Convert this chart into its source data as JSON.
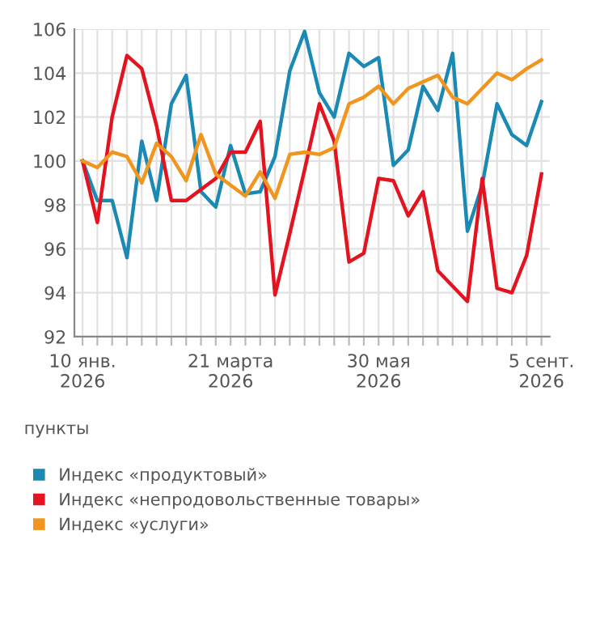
{
  "chart_data": {
    "type": "line",
    "categories": [
      "10 янв.\n2026",
      null,
      null,
      null,
      null,
      null,
      null,
      null,
      null,
      null,
      "21 марта\n2026",
      null,
      null,
      null,
      null,
      null,
      null,
      null,
      null,
      null,
      "30 мая\n2026",
      null,
      null,
      null,
      null,
      null,
      null,
      null,
      null,
      null,
      null,
      "5 сент.\n2026"
    ],
    "series": [
      {
        "name": "Индекс «продуктовый»",
        "color": "#1a8ab5",
        "values": [
          100,
          98.2,
          98.2,
          95.6,
          100.9,
          98.2,
          102.6,
          103.9,
          98.6,
          97.9,
          100.7,
          98.5,
          98.6,
          100.2,
          104.1,
          105.9,
          103.1,
          102.0,
          104.9,
          104.3,
          104.7,
          99.8,
          100.5,
          103.4,
          102.3,
          104.9,
          96.8,
          98.9,
          102.6,
          101.2,
          100.7,
          102.7
        ]
      },
      {
        "name": "Индекс «непродовольственные товары»",
        "color": "#e3141f",
        "values": [
          100,
          97.2,
          102.0,
          104.8,
          104.2,
          101.6,
          98.2,
          98.2,
          98.7,
          99.2,
          100.4,
          100.4,
          101.8,
          93.9,
          96.7,
          99.6,
          102.6,
          100.9,
          95.4,
          95.8,
          99.2,
          99.1,
          97.5,
          98.6,
          95.0,
          94.3,
          93.6,
          99.2,
          94.2,
          94.0,
          95.7,
          99.4
        ]
      },
      {
        "name": "Индекс «услуги»",
        "color": "#f0961e",
        "values": [
          100,
          99.7,
          100.4,
          100.2,
          99.0,
          100.8,
          100.2,
          99.1,
          101.2,
          99.4,
          98.9,
          98.4,
          99.5,
          98.3,
          100.3,
          100.4,
          100.3,
          100.6,
          102.6,
          102.9,
          103.4,
          102.6,
          103.3,
          103.6,
          103.9,
          102.9,
          102.6,
          103.3,
          104.0,
          103.7,
          104.2,
          104.6
        ]
      }
    ],
    "ylim": [
      92,
      106
    ],
    "yticks": [
      92,
      94,
      96,
      98,
      100,
      102,
      104,
      106
    ],
    "grid": true,
    "legend": "bottom",
    "marker": "none",
    "line_style": "solid",
    "annotations": [
      "пункты"
    ]
  }
}
